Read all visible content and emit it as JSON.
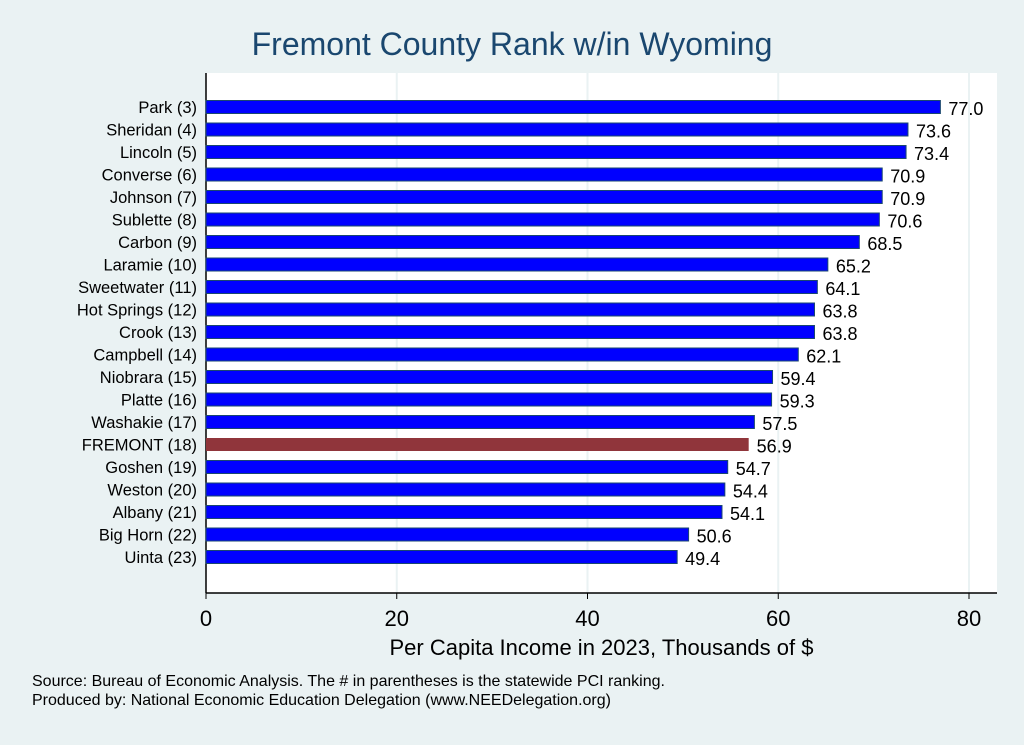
{
  "chart_data": {
    "type": "bar",
    "orientation": "horizontal",
    "title": "Fremont County Rank w/in Wyoming",
    "xlabel": "Per Capita Income in 2023, Thousands of $",
    "ylabel": "",
    "xlim": [
      0,
      83
    ],
    "xticks": [
      0,
      20,
      40,
      60,
      80
    ],
    "grid": true,
    "categories": [
      "Park  (3)",
      "Sheridan  (4)",
      "Lincoln  (5)",
      "Converse  (6)",
      "Johnson  (7)",
      "Sublette  (8)",
      "Carbon  (9)",
      "Laramie (10)",
      "Sweetwater (11)",
      "Hot Springs (12)",
      "Crook (13)",
      "Campbell (14)",
      "Niobrara (15)",
      "Platte (16)",
      "Washakie (17)",
      "FREMONT (18)",
      "Goshen (19)",
      "Weston (20)",
      "Albany (21)",
      "Big Horn (22)",
      "Uinta (23)"
    ],
    "values": [
      77.0,
      73.6,
      73.4,
      70.9,
      70.9,
      70.6,
      68.5,
      65.2,
      64.1,
      63.8,
      63.8,
      62.1,
      59.4,
      59.3,
      57.5,
      56.9,
      54.7,
      54.4,
      54.1,
      50.6,
      49.4
    ],
    "data_labels": [
      "77.0",
      "73.6",
      "73.4",
      "70.9",
      "70.9",
      "70.6",
      "68.5",
      "65.2",
      "64.1",
      "63.8",
      "63.8",
      "62.1",
      "59.4",
      "59.3",
      "57.5",
      "56.9",
      "54.7",
      "54.4",
      "54.1",
      "50.6",
      "49.4"
    ],
    "highlight": "FREMONT (18)",
    "colors": {
      "bar": "#0000ff",
      "highlight": "#90353b",
      "edge": "#1a476f",
      "grid": "#eaf2f3"
    }
  },
  "footer": {
    "source": "Source: Bureau of Economic Analysis. The # in parentheses is the statewide PCI ranking.",
    "produced": "Produced by: National Economic Education Delegation (www.NEEDelegation.org)"
  }
}
